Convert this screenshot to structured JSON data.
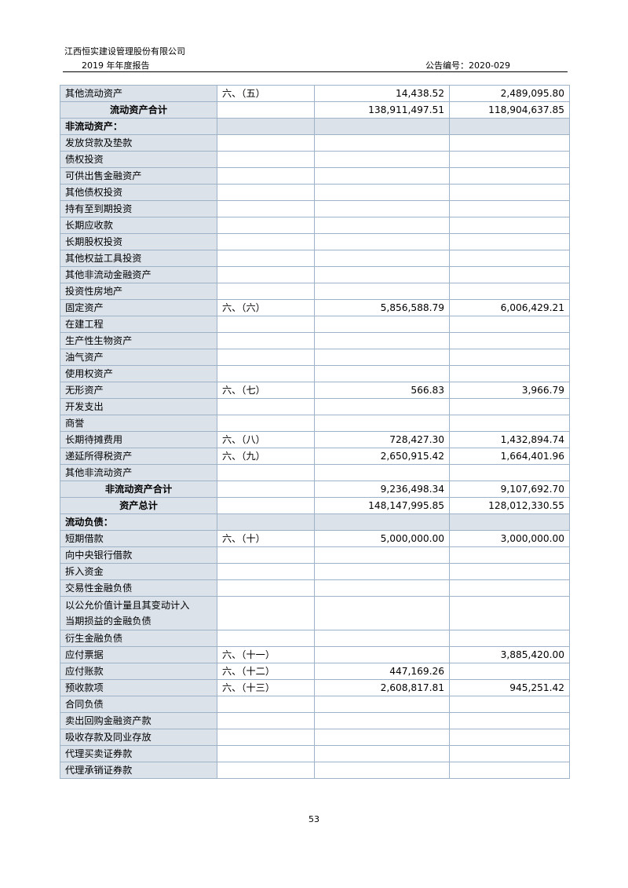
{
  "header": {
    "company": "江西恒实建设管理股份有限公司",
    "report": "2019 年年度报告",
    "announcement_no": "公告编号：2020-029"
  },
  "rows": [
    {
      "label": "其他流动资产",
      "note": "六、（五）",
      "current": "14,438.52",
      "prior": "2,489,095.80"
    },
    {
      "label": "流动资产合计",
      "note": "",
      "current": "138,911,497.51",
      "prior": "118,904,637.85",
      "total": true
    },
    {
      "label": "非流动资产：",
      "note": "",
      "current": "",
      "prior": "",
      "section": true
    },
    {
      "label": "发放贷款及垫款",
      "note": "",
      "current": "",
      "prior": ""
    },
    {
      "label": "债权投资",
      "note": "",
      "current": "",
      "prior": ""
    },
    {
      "label": "可供出售金融资产",
      "note": "",
      "current": "",
      "prior": ""
    },
    {
      "label": "其他债权投资",
      "note": "",
      "current": "",
      "prior": ""
    },
    {
      "label": "持有至到期投资",
      "note": "",
      "current": "",
      "prior": ""
    },
    {
      "label": "长期应收款",
      "note": "",
      "current": "",
      "prior": ""
    },
    {
      "label": "长期股权投资",
      "note": "",
      "current": "",
      "prior": ""
    },
    {
      "label": "其他权益工具投资",
      "note": "",
      "current": "",
      "prior": ""
    },
    {
      "label": "其他非流动金融资产",
      "note": "",
      "current": "",
      "prior": ""
    },
    {
      "label": "投资性房地产",
      "note": "",
      "current": "",
      "prior": ""
    },
    {
      "label": "固定资产",
      "note": "六、（六）",
      "current": "5,856,588.79",
      "prior": "6,006,429.21"
    },
    {
      "label": "在建工程",
      "note": "",
      "current": "",
      "prior": ""
    },
    {
      "label": "生产性生物资产",
      "note": "",
      "current": "",
      "prior": ""
    },
    {
      "label": "油气资产",
      "note": "",
      "current": "",
      "prior": ""
    },
    {
      "label": "使用权资产",
      "note": "",
      "current": "",
      "prior": ""
    },
    {
      "label": "无形资产",
      "note": "六、（七）",
      "current": "566.83",
      "prior": "3,966.79"
    },
    {
      "label": "开发支出",
      "note": "",
      "current": "",
      "prior": ""
    },
    {
      "label": "商誉",
      "note": "",
      "current": "",
      "prior": ""
    },
    {
      "label": "长期待摊费用",
      "note": "六、（八）",
      "current": "728,427.30",
      "prior": "1,432,894.74"
    },
    {
      "label": "递延所得税资产",
      "note": "六、（九）",
      "current": "2,650,915.42",
      "prior": "1,664,401.96"
    },
    {
      "label": "其他非流动资产",
      "note": "",
      "current": "",
      "prior": ""
    },
    {
      "label": "非流动资产合计",
      "note": "",
      "current": "9,236,498.34",
      "prior": "9,107,692.70",
      "total": true
    },
    {
      "label": "资产总计",
      "note": "",
      "current": "148,147,995.85",
      "prior": "128,012,330.55",
      "total": true
    },
    {
      "label": "流动负债：",
      "note": "",
      "current": "",
      "prior": "",
      "section": true
    },
    {
      "label": "短期借款",
      "note": "六、（十）",
      "current": "5,000,000.00",
      "prior": "3,000,000.00"
    },
    {
      "label": "向中央银行借款",
      "note": "",
      "current": "",
      "prior": ""
    },
    {
      "label": "拆入资金",
      "note": "",
      "current": "",
      "prior": ""
    },
    {
      "label": "交易性金融负债",
      "note": "",
      "current": "",
      "prior": ""
    },
    {
      "label": "以公允价值计量且其变动计入\n当期损益的金融负债",
      "note": "",
      "current": "",
      "prior": "",
      "tall": true
    },
    {
      "label": "衍生金融负债",
      "note": "",
      "current": "",
      "prior": ""
    },
    {
      "label": "应付票据",
      "note": "六、（十一）",
      "current": "",
      "prior": "3,885,420.00"
    },
    {
      "label": "应付账款",
      "note": "六、（十二）",
      "current": "447,169.26",
      "prior": ""
    },
    {
      "label": "预收款项",
      "note": "六、（十三）",
      "current": "2,608,817.81",
      "prior": "945,251.42"
    },
    {
      "label": "合同负债",
      "note": "",
      "current": "",
      "prior": ""
    },
    {
      "label": "卖出回购金融资产款",
      "note": "",
      "current": "",
      "prior": ""
    },
    {
      "label": "吸收存款及同业存放",
      "note": "",
      "current": "",
      "prior": ""
    },
    {
      "label": "代理买卖证券款",
      "note": "",
      "current": "",
      "prior": ""
    },
    {
      "label": "代理承销证券款",
      "note": "",
      "current": "",
      "prior": ""
    }
  ],
  "footer": {
    "page_number": "53"
  }
}
